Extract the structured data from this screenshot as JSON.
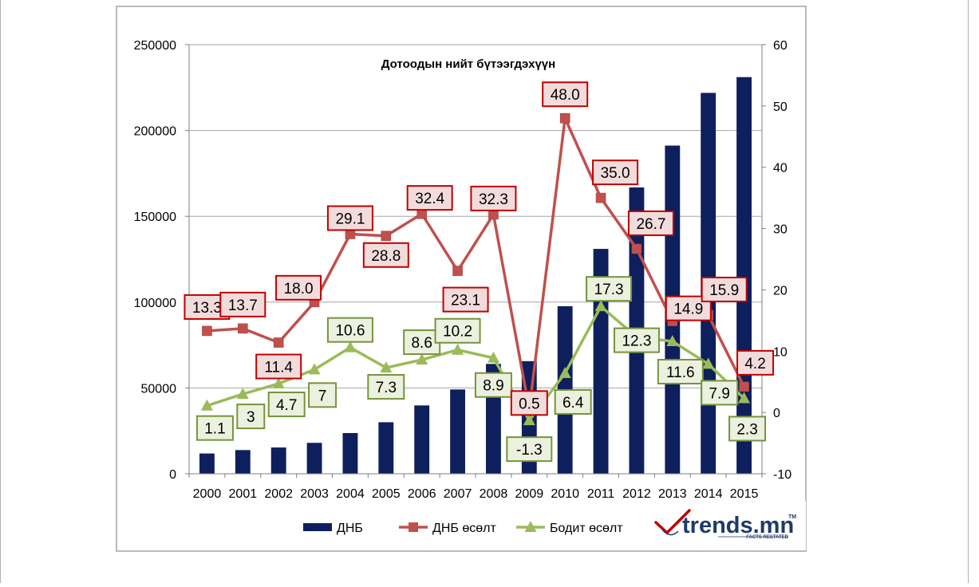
{
  "chart_data": {
    "type": "bar",
    "title": "Дотоодын  нийт бүтээгдэхүүн",
    "categories": [
      "2000",
      "2001",
      "2002",
      "2003",
      "2004",
      "2005",
      "2006",
      "2007",
      "2008",
      "2009",
      "2010",
      "2011",
      "2012",
      "2013",
      "2014",
      "2015"
    ],
    "y_left": {
      "range": [
        0,
        250000
      ],
      "ticks": [
        0,
        50000,
        100000,
        150000,
        200000,
        250000
      ]
    },
    "y_right": {
      "range": [
        -10,
        60
      ],
      "ticks": [
        -10,
        0,
        10,
        20,
        30,
        40,
        50,
        60
      ]
    },
    "grid": true,
    "legend_position": "bottom",
    "series": [
      {
        "name": "ДНБ",
        "type": "bar",
        "axis": "left",
        "color": "#0d1f5c",
        "values": [
          11800,
          13800,
          15300,
          18000,
          23700,
          30000,
          39800,
          49100,
          64000,
          65600,
          97600,
          131000,
          166800,
          191200,
          221900,
          231100
        ]
      },
      {
        "name": "ДНБ өсөлт",
        "type": "line",
        "axis": "right",
        "color": "#c0504d",
        "marker": "square",
        "values": [
          13.3,
          13.7,
          11.4,
          18.0,
          29.1,
          28.8,
          32.4,
          23.1,
          32.3,
          0.5,
          48.0,
          35.0,
          26.7,
          14.9,
          15.9,
          4.2
        ],
        "labels": [
          "13.3",
          "13.7",
          "11.4",
          "18.0",
          "29.1",
          "28.8",
          "32.4",
          "23.1",
          "32.3",
          "0.5",
          "48.0",
          "35.0",
          "26.7",
          "14.9",
          "15.9",
          "4.2"
        ]
      },
      {
        "name": "Бодит өсөлт",
        "type": "line",
        "axis": "right",
        "color": "#9bbb59",
        "marker": "triangle",
        "values": [
          1.1,
          3,
          4.7,
          7,
          10.6,
          7.3,
          8.6,
          10.2,
          8.9,
          -1.3,
          6.4,
          17.3,
          12.3,
          11.6,
          7.9,
          2.3
        ],
        "labels": [
          "1.1",
          "3",
          "4.7",
          "7",
          "10.6",
          "7.3",
          "8.6",
          "10.2",
          "8.9",
          "-1.3",
          "6.4",
          "17.3",
          "12.3",
          "11.6",
          "7.9",
          "2.3"
        ]
      }
    ]
  },
  "logo": {
    "text": "trends.mn",
    "tm": "TM",
    "tagline": "FACTS RESTATED"
  },
  "colors": {
    "red_label_fill": "#f2dcdb",
    "red_label_border": "#c00000",
    "green_label_fill": "#ebf1de",
    "green_label_border": "#77933c",
    "grid": "#a6a6a6",
    "frame": "#8c8c8c"
  }
}
